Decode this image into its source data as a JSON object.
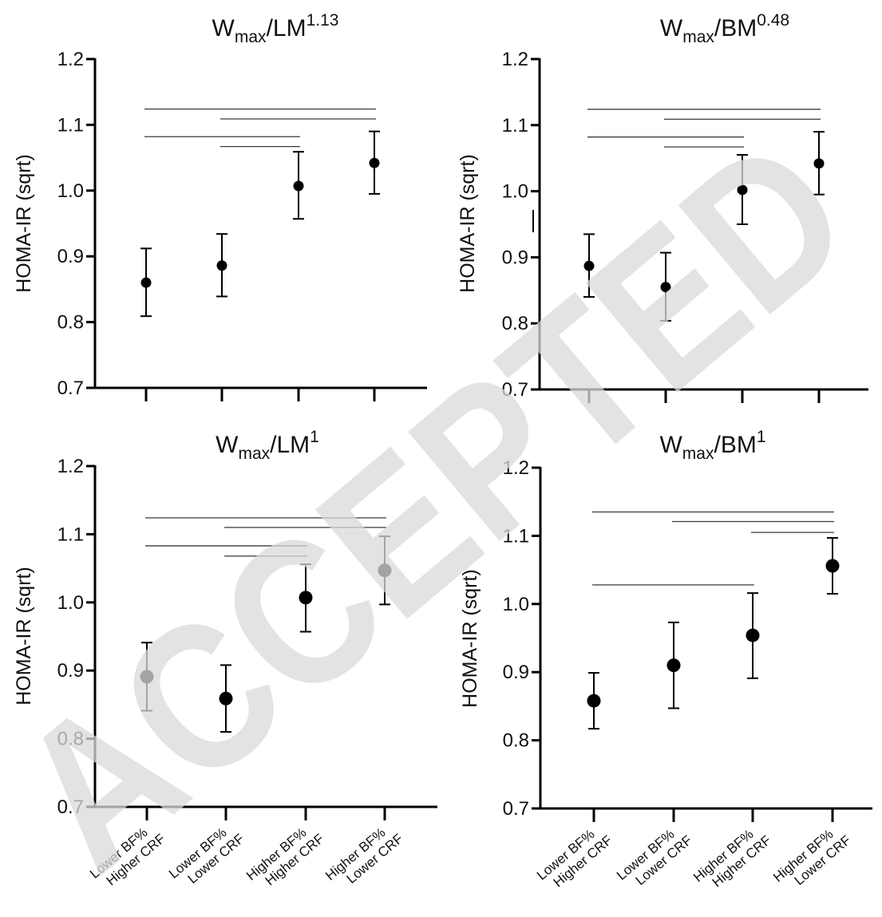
{
  "colors": {
    "marks": "#000000",
    "sig_lines": "#3a3a3a",
    "watermark": "#d9d9d9"
  },
  "watermark": "ACCEPTED",
  "chart_data": [
    {
      "type": "scatter",
      "title": {
        "base": "W",
        "sub": "max",
        "rest": "/LM",
        "sup": "1.13"
      },
      "ylabel": "HOMA-IR (sqrt)",
      "ylim": [
        0.7,
        1.2
      ],
      "yticks": [
        "0.7",
        "0.8",
        "0.9",
        "1.0",
        "1.1",
        "1.2"
      ],
      "categories": [
        "Lower BF% Higher CRF",
        "Lower BF% Lower CRF",
        "Higher BF% Higher CRF",
        "Higher BF% Lower CRF"
      ],
      "show_xtick_labels": false,
      "values": [
        0.86,
        0.886,
        1.007,
        1.042
      ],
      "error_low": [
        0.809,
        0.839,
        0.957,
        0.995
      ],
      "error_high": [
        0.912,
        0.934,
        1.059,
        1.09
      ],
      "significance": [
        {
          "from": 0,
          "to": 3,
          "y": 1.124
        },
        {
          "from": 1,
          "to": 3,
          "y": 1.109
        },
        {
          "from": 0,
          "to": 2,
          "y": 1.082
        },
        {
          "from": 1,
          "to": 2,
          "y": 1.067
        }
      ]
    },
    {
      "type": "scatter",
      "title": {
        "base": "W",
        "sub": "max",
        "rest": "/BM",
        "sup": "0.48"
      },
      "ylabel": "HOMA-IR (sqrt)",
      "ylim": [
        0.7,
        1.2
      ],
      "yticks": [
        "0.7",
        "0.8",
        "0.9",
        "1.0",
        "1.1",
        "1.2"
      ],
      "categories": [
        "Lower BF% Higher CRF",
        "Lower BF% Lower CRF",
        "Higher BF% Higher CRF",
        "Higher BF% Lower CRF"
      ],
      "show_xtick_labels": false,
      "values": [
        0.887,
        0.855,
        1.002,
        1.042
      ],
      "error_low": [
        0.84,
        0.804,
        0.95,
        0.995
      ],
      "error_high": [
        0.935,
        0.907,
        1.055,
        1.09
      ],
      "significance": [
        {
          "from": 0,
          "to": 3,
          "y": 1.124
        },
        {
          "from": 1,
          "to": 3,
          "y": 1.109
        },
        {
          "from": 0,
          "to": 2,
          "y": 1.082
        },
        {
          "from": 1,
          "to": 2,
          "y": 1.067
        }
      ]
    },
    {
      "type": "scatter",
      "title": {
        "base": "W",
        "sub": "max",
        "rest": "/LM",
        "sup": "1"
      },
      "ylabel": "HOMA-IR (sqrt)",
      "ylim": [
        0.7,
        1.2
      ],
      "yticks": [
        "0.7",
        "0.8",
        "0.9",
        "1.0",
        "1.1",
        "1.2"
      ],
      "categories": [
        "Lower BF% Higher CRF",
        "Lower BF% Lower CRF",
        "Higher BF% Higher CRF",
        "Higher BF% Lower CRF"
      ],
      "show_xtick_labels": true,
      "values": [
        0.891,
        0.859,
        1.007,
        1.047
      ],
      "error_low": [
        0.841,
        0.81,
        0.957,
        0.997
      ],
      "error_high": [
        0.941,
        0.908,
        1.056,
        1.097
      ],
      "significance": [
        {
          "from": 0,
          "to": 3,
          "y": 1.124
        },
        {
          "from": 1,
          "to": 3,
          "y": 1.11
        },
        {
          "from": 0,
          "to": 2,
          "y": 1.083
        },
        {
          "from": 1,
          "to": 2,
          "y": 1.068
        }
      ]
    },
    {
      "type": "scatter",
      "title": {
        "base": "W",
        "sub": "max",
        "rest": "/BM",
        "sup": "1"
      },
      "ylabel": "HOMA-IR (sqrt)",
      "ylim": [
        0.7,
        1.2
      ],
      "yticks": [
        "0.7",
        "0.8",
        "0.9",
        "1.0",
        "1.1",
        "1.2"
      ],
      "categories": [
        "Lower BF% Higher CRF",
        "Lower BF% Lower CRF",
        "Higher BF% Higher CRF",
        "Higher BF% Lower CRF"
      ],
      "show_xtick_labels": true,
      "values": [
        0.858,
        0.91,
        0.954,
        1.056
      ],
      "error_low": [
        0.817,
        0.847,
        0.891,
        1.015
      ],
      "error_high": [
        0.899,
        0.973,
        1.016,
        1.097
      ],
      "significance": [
        {
          "from": 0,
          "to": 3,
          "y": 1.135
        },
        {
          "from": 1,
          "to": 3,
          "y": 1.121
        },
        {
          "from": 2,
          "to": 3,
          "y": 1.105
        },
        {
          "from": 0,
          "to": 2,
          "y": 1.028
        }
      ]
    }
  ]
}
